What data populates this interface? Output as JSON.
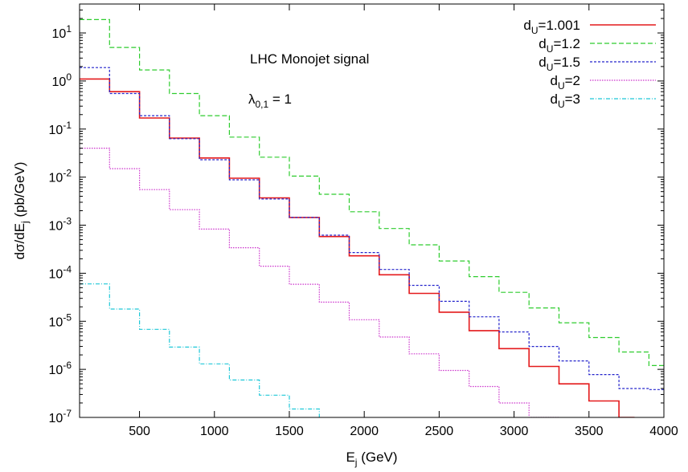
{
  "chart_data": {
    "type": "line",
    "title": "",
    "xlabel": "E_j  (GeV)",
    "xlabel_main": "E",
    "xlabel_sub": "j",
    "xlabel_unit": "(GeV)",
    "ylabel_main": "dσ/dE",
    "ylabel_sub": "j",
    "ylabel_unit": "(pb/GeV)",
    "xlim": [
      100,
      4000
    ],
    "ylim": [
      1e-07,
      40
    ],
    "yscale": "log",
    "grid": false,
    "legend_position": "top-right",
    "x_ticks": [
      500,
      1000,
      1500,
      2000,
      2500,
      3000,
      3500,
      4000
    ],
    "x_tick_labels": [
      "500",
      "1000",
      "1500",
      "2000",
      "2500",
      "3000",
      "3500",
      "4000"
    ],
    "y_ticks": [
      {
        "base": "10",
        "exp": "1",
        "value": 10
      },
      {
        "base": "10",
        "exp": "0",
        "value": 1
      },
      {
        "base": "10",
        "exp": "-1",
        "value": 0.1
      },
      {
        "base": "10",
        "exp": "-2",
        "value": 0.01
      },
      {
        "base": "10",
        "exp": "-3",
        "value": 0.001
      },
      {
        "base": "10",
        "exp": "-4",
        "value": 0.0001
      },
      {
        "base": "10",
        "exp": "-5",
        "value": 1e-05
      },
      {
        "base": "10",
        "exp": "-6",
        "value": 1e-06
      },
      {
        "base": "10",
        "exp": "-7",
        "value": 1e-07
      }
    ],
    "annotations": [
      {
        "text": "LHC Monojet signal",
        "x": 1200,
        "y": 3.5
      },
      {
        "text_main": "λ",
        "text_sub": "0,1",
        "text_rest": " = 1",
        "x": 1000,
        "y": 0.3
      }
    ],
    "series": [
      {
        "name_main": "d",
        "name_sub": "U",
        "name_rest": "=1.001",
        "color": "#e41a1c",
        "dash": "",
        "x": [
          100,
          300,
          500,
          700,
          900,
          1100,
          1300,
          1500,
          1700,
          1900,
          2100,
          2300,
          2500,
          2700,
          2900,
          3100,
          3300,
          3500,
          3700,
          3800
        ],
        "y": [
          1.1,
          0.6,
          0.17,
          0.065,
          0.025,
          0.0095,
          0.0037,
          0.00145,
          0.00058,
          0.00023,
          9.3e-05,
          3.8e-05,
          1.55e-05,
          6.4e-06,
          2.7e-06,
          1.15e-06,
          5e-07,
          2.2e-07,
          1e-07,
          8e-08
        ]
      },
      {
        "name_main": "d",
        "name_sub": "U",
        "name_rest": "=1.2",
        "color": "#2ecc2e",
        "dash": "6,3",
        "x": [
          100,
          300,
          500,
          700,
          900,
          1100,
          1300,
          1500,
          1700,
          1900,
          2100,
          2300,
          2500,
          2700,
          2900,
          3100,
          3300,
          3500,
          3700,
          3900,
          4000
        ],
        "y": [
          19,
          5,
          1.7,
          0.55,
          0.19,
          0.068,
          0.026,
          0.0105,
          0.0044,
          0.0019,
          0.00085,
          0.00039,
          0.00018,
          8.5e-05,
          4e-05,
          1.9e-05,
          9.3e-06,
          4.6e-06,
          2.3e-06,
          1.2e-06,
          1.2e-06
        ]
      },
      {
        "name_main": "d",
        "name_sub": "U",
        "name_rest": "=1.5",
        "color": "#2424cc",
        "dash": "3,2",
        "x": [
          100,
          300,
          500,
          700,
          900,
          1100,
          1300,
          1500,
          1700,
          1900,
          2100,
          2300,
          2500,
          2700,
          2900,
          3100,
          3300,
          3500,
          3700,
          3900,
          4000
        ],
        "y": [
          1.9,
          0.55,
          0.19,
          0.063,
          0.023,
          0.0088,
          0.0035,
          0.00145,
          0.00062,
          0.00027,
          0.00012,
          5.6e-05,
          2.6e-05,
          1.24e-05,
          6e-06,
          3e-06,
          1.5e-06,
          7.8e-07,
          4e-07,
          3.8e-07,
          3.8e-07
        ]
      },
      {
        "name_main": "d",
        "name_sub": "U",
        "name_rest": "=2",
        "color": "#cc33cc",
        "dash": "1.5,1.5",
        "x": [
          100,
          300,
          500,
          700,
          900,
          1100,
          1300,
          1500,
          1700,
          1900,
          2100,
          2300,
          2500,
          2700,
          2900,
          3100,
          3300,
          3500,
          3700,
          3780
        ],
        "y": [
          0.04,
          0.015,
          0.0055,
          0.0021,
          0.00083,
          0.00034,
          0.00014,
          5.9e-05,
          2.5e-05,
          1.08e-05,
          4.7e-06,
          2.1e-06,
          9.5e-07,
          4.4e-07,
          2e-07,
          1e-07,
          6e-08,
          5e-08,
          5e-08,
          5e-08
        ]
      },
      {
        "name_main": "d",
        "name_sub": "U",
        "name_rest": "=3",
        "color": "#1ec8d8",
        "dash": "5,2,1,2",
        "x": [
          100,
          300,
          500,
          700,
          900,
          1100,
          1300,
          1500,
          1700,
          1900
        ],
        "y": [
          6e-05,
          1.8e-05,
          6.8e-06,
          2.9e-06,
          1.3e-06,
          6e-07,
          2.9e-07,
          1.5e-07,
          9e-08,
          6e-08
        ]
      }
    ]
  }
}
